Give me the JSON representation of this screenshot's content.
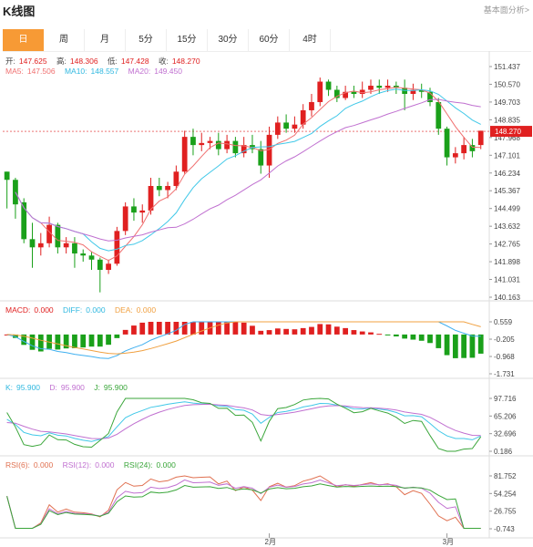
{
  "header": {
    "title": "K线图",
    "link": "基本面分析>"
  },
  "tabs": [
    {
      "label": "日",
      "active": true
    },
    {
      "label": "周",
      "active": false
    },
    {
      "label": "月",
      "active": false
    },
    {
      "label": "5分",
      "active": false
    },
    {
      "label": "15分",
      "active": false
    },
    {
      "label": "30分",
      "active": false
    },
    {
      "label": "60分",
      "active": false
    },
    {
      "label": "4时",
      "active": false
    }
  ],
  "ohlc": {
    "open_label": "开:",
    "open": "147.625",
    "high_label": "高:",
    "high": "148.306",
    "low_label": "低:",
    "low": "147.428",
    "close_label": "收:",
    "close": "148.270"
  },
  "ma": {
    "ma5_label": "MA5:",
    "ma5": "147.506",
    "ma10_label": "MA10:",
    "ma10": "148.557",
    "ma20_label": "MA20:",
    "ma20": "149.450"
  },
  "macd": {
    "macd_label": "MACD:",
    "macd": "0.000",
    "diff_label": "DIFF:",
    "diff": "0.000",
    "dea_label": "DEA:",
    "dea": "0.000"
  },
  "kdj": {
    "k_label": "K:",
    "k": "95.900",
    "d_label": "D:",
    "d": "95.900",
    "j_label": "J:",
    "j": "95.900"
  },
  "rsi": {
    "rsi6_label": "RSI(6):",
    "rsi6": "0.000",
    "rsi12_label": "RSI(12):",
    "rsi12": "0.000",
    "rsi24_label": "RSI(24):",
    "rsi24": "0.000"
  },
  "colors": {
    "up": "#e02020",
    "down": "#1aa01a",
    "ma5": "#f07070",
    "ma10": "#40c8e8",
    "ma20": "#c070d0",
    "dea": "#f0a040",
    "diff": "#40b0f0",
    "accent": "#f79a35"
  },
  "chart_data": [
    {
      "type": "candlestick",
      "name": "price",
      "y_ticks": [
        "151.437",
        "150.570",
        "149.703",
        "148.835",
        "147.968",
        "147.101",
        "146.234",
        "145.367",
        "144.499",
        "143.632",
        "142.765",
        "141.898",
        "141.031",
        "140.163"
      ],
      "ylim": [
        140.163,
        151.437
      ],
      "current_price": "148.270",
      "x_labels": [
        "2月",
        "3月"
      ],
      "x_label_index": [
        31,
        52
      ],
      "candles": [
        [
          146.3,
          145.9,
          146.3,
          144.5
        ],
        [
          145.9,
          144.7,
          146.0,
          144.0
        ],
        [
          144.8,
          143.0,
          145.0,
          142.8
        ],
        [
          143.0,
          142.6,
          143.8,
          141.6
        ],
        [
          142.6,
          142.8,
          143.3,
          142.2
        ],
        [
          142.8,
          143.7,
          144.1,
          142.6
        ],
        [
          143.7,
          142.6,
          143.8,
          142.3
        ],
        [
          142.6,
          142.8,
          143.1,
          142.3
        ],
        [
          142.8,
          142.3,
          143.1,
          141.6
        ],
        [
          142.3,
          142.2,
          142.5,
          141.9
        ],
        [
          142.2,
          142.0,
          142.4,
          141.5
        ],
        [
          142.0,
          141.5,
          142.1,
          140.4
        ],
        [
          141.5,
          141.8,
          142.0,
          141.3
        ],
        [
          141.8,
          143.4,
          143.6,
          141.7
        ],
        [
          143.4,
          144.6,
          144.8,
          143.2
        ],
        [
          144.6,
          144.3,
          145.0,
          143.9
        ],
        [
          144.3,
          144.4,
          144.7,
          143.8
        ],
        [
          144.4,
          145.6,
          146.0,
          144.2
        ],
        [
          145.6,
          145.4,
          146.0,
          145.1
        ],
        [
          145.4,
          145.6,
          145.8,
          145.0
        ],
        [
          145.6,
          146.3,
          146.6,
          145.4
        ],
        [
          146.3,
          148.0,
          148.3,
          146.2
        ],
        [
          148.0,
          147.6,
          148.4,
          147.1
        ],
        [
          147.6,
          147.7,
          148.2,
          147.3
        ],
        [
          147.7,
          147.8,
          148.0,
          147.4
        ],
        [
          147.8,
          147.4,
          148.2,
          147.1
        ],
        [
          147.4,
          147.8,
          148.1,
          147.2
        ],
        [
          147.8,
          147.2,
          148.0,
          147.0
        ],
        [
          147.2,
          147.6,
          148.0,
          147.0
        ],
        [
          147.6,
          147.4,
          148.1,
          147.2
        ],
        [
          147.4,
          146.6,
          147.8,
          146.2
        ],
        [
          146.6,
          148.1,
          148.5,
          146.0
        ],
        [
          148.1,
          148.7,
          149.0,
          147.9
        ],
        [
          148.7,
          148.4,
          149.1,
          148.2
        ],
        [
          148.4,
          148.6,
          149.0,
          148.2
        ],
        [
          148.6,
          149.3,
          149.6,
          148.4
        ],
        [
          149.3,
          149.7,
          150.1,
          149.0
        ],
        [
          149.7,
          150.7,
          150.9,
          149.5
        ],
        [
          150.7,
          150.3,
          150.8,
          150.0
        ],
        [
          150.3,
          149.9,
          150.5,
          149.7
        ],
        [
          149.9,
          150.2,
          150.5,
          149.8
        ],
        [
          150.2,
          150.1,
          150.5,
          149.9
        ],
        [
          150.1,
          150.3,
          150.7,
          149.9
        ],
        [
          150.3,
          150.5,
          150.8,
          150.1
        ],
        [
          150.5,
          150.4,
          150.8,
          150.1
        ],
        [
          150.4,
          150.5,
          150.8,
          150.2
        ],
        [
          150.5,
          150.4,
          150.7,
          150.1
        ],
        [
          150.4,
          150.1,
          150.8,
          149.3
        ],
        [
          150.1,
          150.3,
          150.6,
          149.8
        ],
        [
          150.3,
          150.2,
          150.6,
          149.9
        ],
        [
          150.2,
          149.7,
          150.4,
          149.5
        ],
        [
          149.7,
          148.4,
          149.9,
          148.1
        ],
        [
          148.4,
          147.0,
          148.5,
          146.6
        ],
        [
          147.0,
          147.2,
          147.5,
          146.7
        ],
        [
          147.2,
          147.6,
          148.0,
          146.9
        ],
        [
          147.6,
          147.3,
          147.9,
          147.0
        ],
        [
          147.6,
          148.3,
          148.3,
          147.4
        ]
      ]
    },
    {
      "type": "bar+line",
      "name": "MACD",
      "y_ticks": [
        "0.559",
        "-0.205",
        "-0.968",
        "-1.731"
      ],
      "ylim": [
        -1.731,
        0.559
      ]
    },
    {
      "type": "line",
      "name": "KDJ",
      "y_ticks": [
        "97.716",
        "65.206",
        "32.696",
        "0.186"
      ],
      "ylim": [
        0.186,
        97.716
      ]
    },
    {
      "type": "line",
      "name": "RSI",
      "y_ticks": [
        "81.752",
        "54.254",
        "26.755",
        "-0.743"
      ],
      "ylim": [
        -0.743,
        81.752
      ]
    }
  ]
}
